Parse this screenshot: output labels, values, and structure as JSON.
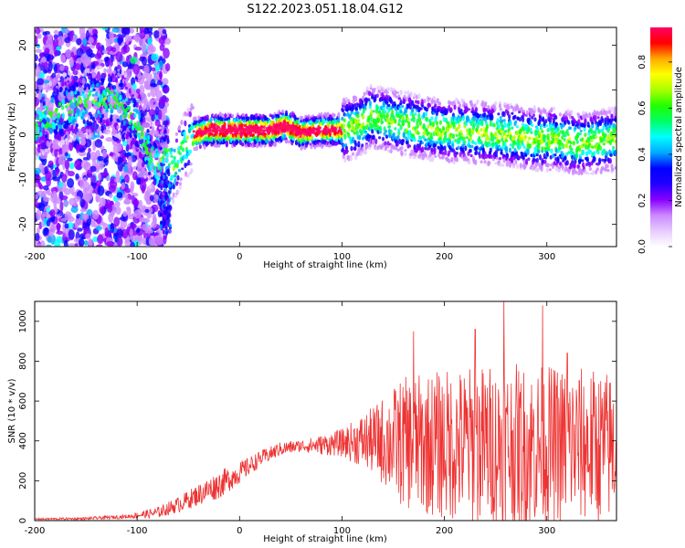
{
  "figure_title": "S122.2023.051.18.04.G12",
  "chart_data": [
    {
      "type": "heatmap",
      "panel": "spectrogram",
      "xlabel": "Height of straight line (km)",
      "ylabel": "Frequency (Hz)",
      "xlim": [
        -200,
        368
      ],
      "ylim": [
        -25,
        24
      ],
      "xticks": [
        -200,
        -100,
        0,
        100,
        200,
        300
      ],
      "yticks": [
        -20,
        -10,
        0,
        10,
        20
      ],
      "colorbar": {
        "label": "Normalized spectral amplitude",
        "range": [
          0,
          0.95
        ],
        "ticks": [
          0.0,
          0.2,
          0.4,
          0.6,
          0.8
        ],
        "tick_labels": [
          "0.0",
          "0.2",
          "0.4",
          "0.6",
          "0.8"
        ],
        "colors": [
          "#ffffff",
          "#e6ccff",
          "#cc88ff",
          "#8800ff",
          "#2200ff",
          "#0000ff",
          "#00aaff",
          "#00ffff",
          "#00ff66",
          "#22ff00",
          "#aaff00",
          "#ffff00",
          "#ffaa00",
          "#ff0000",
          "#ff0066"
        ]
      },
      "ridge": [
        {
          "x": -200,
          "f": 2
        },
        {
          "x": -170,
          "f": 6
        },
        {
          "x": -150,
          "f": 7
        },
        {
          "x": -130,
          "f": 8
        },
        {
          "x": -115,
          "f": 7
        },
        {
          "x": -100,
          "f": 2
        },
        {
          "x": -90,
          "f": -3
        },
        {
          "x": -80,
          "f": -7
        },
        {
          "x": -72,
          "f": -4
        },
        {
          "x": -65,
          "f": -8
        },
        {
          "x": -55,
          "f": -3
        },
        {
          "x": -45,
          "f": 0
        },
        {
          "x": -30,
          "f": 1
        },
        {
          "x": 0,
          "f": 1
        },
        {
          "x": 30,
          "f": 1
        },
        {
          "x": 45,
          "f": 2
        },
        {
          "x": 60,
          "f": 0.5
        },
        {
          "x": 80,
          "f": 1
        },
        {
          "x": 100,
          "f": 1
        },
        {
          "x": 115,
          "f": 2
        },
        {
          "x": 130,
          "f": 4
        },
        {
          "x": 150,
          "f": 3
        },
        {
          "x": 170,
          "f": 2
        },
        {
          "x": 200,
          "f": 1
        },
        {
          "x": 230,
          "f": 0.5
        },
        {
          "x": 260,
          "f": 0
        },
        {
          "x": 290,
          "f": -1
        },
        {
          "x": 310,
          "f": -1
        },
        {
          "x": 330,
          "f": -2
        },
        {
          "x": 350,
          "f": -1.5
        },
        {
          "x": 368,
          "f": -1
        }
      ]
    },
    {
      "type": "line",
      "panel": "snr",
      "xlabel": "Height of straight line (km)",
      "ylabel": "SNR (10 * v/v)",
      "xlim": [
        -200,
        368
      ],
      "ylim": [
        0,
        1100
      ],
      "xticks": [
        -200,
        -100,
        0,
        100,
        200,
        300
      ],
      "yticks": [
        0,
        200,
        400,
        600,
        800,
        1000
      ],
      "series": [
        {
          "color": "#ee3333",
          "trend": [
            {
              "x": -200,
              "y": 8
            },
            {
              "x": -150,
              "y": 10
            },
            {
              "x": -110,
              "y": 20
            },
            {
              "x": -80,
              "y": 40
            },
            {
              "x": -60,
              "y": 80
            },
            {
              "x": -40,
              "y": 130
            },
            {
              "x": -20,
              "y": 180
            },
            {
              "x": 0,
              "y": 240
            },
            {
              "x": 20,
              "y": 310
            },
            {
              "x": 40,
              "y": 360
            },
            {
              "x": 60,
              "y": 375
            },
            {
              "x": 80,
              "y": 380
            },
            {
              "x": 100,
              "y": 390
            },
            {
              "x": 120,
              "y": 400
            },
            {
              "x": 140,
              "y": 400
            },
            {
              "x": 160,
              "y": 390
            },
            {
              "x": 200,
              "y": 380
            },
            {
              "x": 240,
              "y": 380
            },
            {
              "x": 280,
              "y": 370
            },
            {
              "x": 320,
              "y": 380
            },
            {
              "x": 368,
              "y": 370
            }
          ],
          "noise": [
            {
              "x": -200,
              "amp": 4
            },
            {
              "x": -110,
              "amp": 10
            },
            {
              "x": -60,
              "amp": 40
            },
            {
              "x": -20,
              "amp": 70
            },
            {
              "x": 20,
              "amp": 40
            },
            {
              "x": 60,
              "amp": 30
            },
            {
              "x": 100,
              "amp": 70
            },
            {
              "x": 130,
              "amp": 170
            },
            {
              "x": 160,
              "amp": 330
            },
            {
              "x": 200,
              "amp": 380
            },
            {
              "x": 260,
              "amp": 420
            },
            {
              "x": 320,
              "amp": 400
            },
            {
              "x": 368,
              "amp": 380
            }
          ],
          "peaks": [
            {
              "x": 170,
              "y": 950
            },
            {
              "x": 230,
              "y": 960
            },
            {
              "x": 258,
              "y": 1100
            },
            {
              "x": 296,
              "y": 1080
            },
            {
              "x": 320,
              "y": 840
            }
          ]
        }
      ]
    }
  ]
}
